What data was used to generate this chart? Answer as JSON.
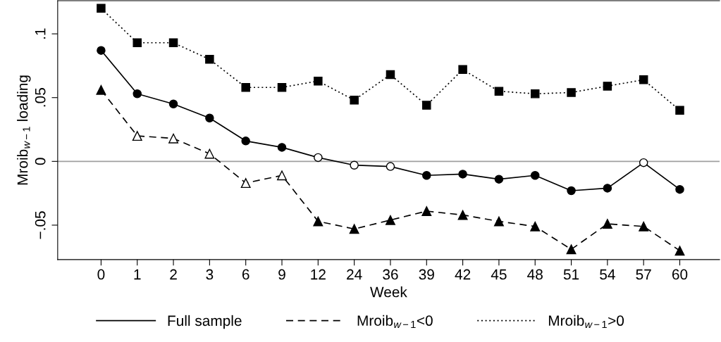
{
  "chart_data": {
    "type": "line",
    "xlabel": "Week",
    "ylabel": "Mroib$_{w−1}$ loading",
    "categories": [
      "0",
      "1",
      "2",
      "3",
      "6",
      "9",
      "12",
      "24",
      "36",
      "39",
      "42",
      "45",
      "48",
      "51",
      "54",
      "57",
      "60"
    ],
    "series": [
      {
        "name": "Full sample",
        "color": "#000000",
        "line_style": "solid",
        "marker": "circle",
        "values": [
          0.087,
          0.053,
          0.045,
          0.034,
          0.016,
          0.011,
          0.003,
          -0.003,
          -0.004,
          -0.011,
          -0.01,
          -0.014,
          -0.011,
          -0.023,
          -0.021,
          -0.001,
          -0.022
        ],
        "colors": [
          "#000000",
          "#000000",
          "#000000",
          "#000000",
          "#000000",
          "#000000",
          "#ffffff",
          "#ffffff",
          "#ffffff",
          "#000000",
          "#000000",
          "#000000",
          "#000000",
          "#000000",
          "#000000",
          "#ffffff",
          "#000000"
        ]
      },
      {
        "name": "Mroib$_{w−1}$<0",
        "color": "#000000",
        "line_style": "dashed",
        "marker": "triangle",
        "values": [
          0.056,
          0.02,
          0.018,
          0.006,
          -0.017,
          -0.011,
          -0.047,
          -0.053,
          -0.046,
          -0.039,
          -0.042,
          -0.047,
          -0.051,
          -0.069,
          -0.049,
          -0.051,
          -0.07
        ],
        "colors": [
          "#000000",
          "#ffffff",
          "#ffffff",
          "#ffffff",
          "#ffffff",
          "#ffffff",
          "#000000",
          "#000000",
          "#000000",
          "#000000",
          "#000000",
          "#000000",
          "#000000",
          "#000000",
          "#000000",
          "#000000",
          "#000000"
        ]
      },
      {
        "name": "Mroib$_{w−1}$>0",
        "color": "#000000",
        "line_style": "dotted",
        "marker": "square",
        "values": [
          0.12,
          0.093,
          0.093,
          0.08,
          0.058,
          0.058,
          0.063,
          0.048,
          0.068,
          0.044,
          0.072,
          0.055,
          0.053,
          0.054,
          0.059,
          0.064,
          0.04
        ]
      }
    ],
    "ylim": [
      -0.077,
      0.126
    ],
    "yticks": [
      {
        "value": -0.05,
        "label": "−.05"
      },
      {
        "value": 0,
        "label": "0"
      },
      {
        "value": 0.05,
        "label": ".05"
      },
      {
        "value": 0.1,
        "label": ".1"
      }
    ],
    "ref_lines": [
      {
        "axis": "y",
        "value": 0,
        "label": null,
        "color": "#a0a0a0"
      }
    ],
    "grid": false,
    "legend": "bottom"
  }
}
